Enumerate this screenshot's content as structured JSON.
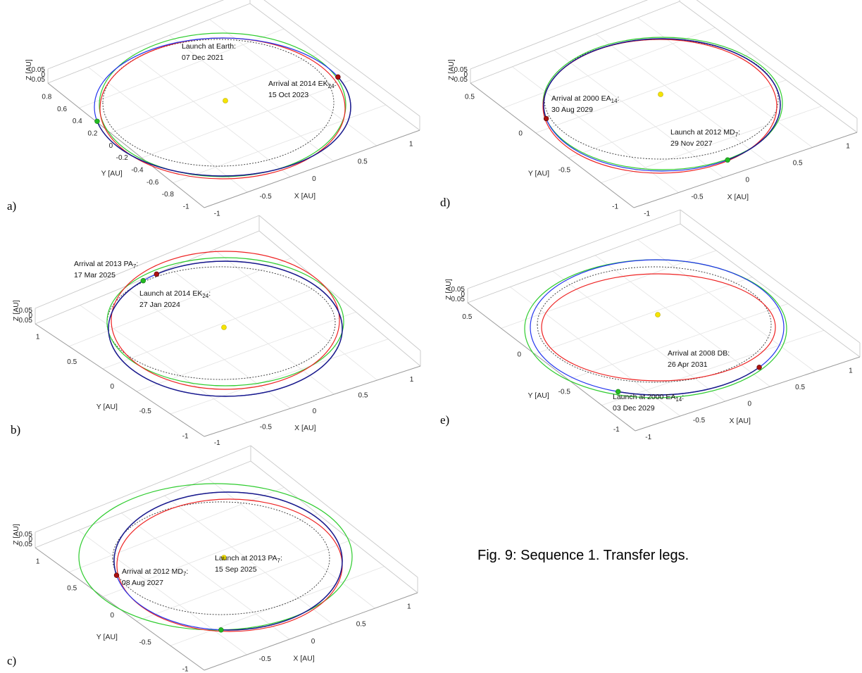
{
  "colors": {
    "axes": "#9a9a9a",
    "grid": "#e3e3e3",
    "dep_orbit": "#2ecc2e",
    "arr_orbit": "#ee2222",
    "transfer": "#2233ee",
    "launch_marker": "#22bb22",
    "arrival_marker": "#aa1111",
    "sun": "#f5e400",
    "ref_orbit": "#333333"
  },
  "caption": "Fig. 9: Sequence 1. Transfer legs.",
  "chart_data": [
    {
      "type": "line",
      "panel": "a)",
      "xlabel": "X  [AU]",
      "ylabel": "Y  [AU]",
      "zlabel": "Z  [AU]",
      "xticks": [
        "-1",
        "-0.5",
        "0",
        "0.5",
        "1"
      ],
      "yticks": [
        "-1",
        "-0.8",
        "-0.6",
        "-0.4",
        "-0.2",
        "0",
        "0.2",
        "0.4",
        "0.6",
        "0.8"
      ],
      "zticks": [
        "-0.05",
        "0",
        "0.05"
      ],
      "launch": {
        "label": "Launch at Earth:",
        "sub": "",
        "date": "07 Dec 2021"
      },
      "arrival": {
        "label": "Arrival at 2014 EK",
        "sub": "24",
        "date": "15 Oct 2023"
      },
      "orbits": {
        "departure": {
          "a": 1.0,
          "e": 0.0167
        },
        "arrival": {
          "a": 1.0,
          "e": 0.07
        }
      }
    },
    {
      "type": "line",
      "panel": "b)",
      "xlabel": "X  [AU]",
      "ylabel": "Y  [AU]",
      "zlabel": "Z  [AU]",
      "xticks": [
        "-1",
        "-0.5",
        "0",
        "0.5",
        "1"
      ],
      "yticks": [
        "-1",
        "-0.5",
        "0",
        "0.5",
        "1"
      ],
      "zticks": [
        "-0.05",
        "0",
        "0.05"
      ],
      "launch": {
        "label": "Launch at 2014 EK",
        "sub": "24",
        "date": "27 Jan 2024"
      },
      "arrival": {
        "label": "Arrival at 2013 PA",
        "sub": "7",
        "date": "17 Mar 2025"
      },
      "orbits": {
        "departure": {
          "a": 1.0,
          "e": 0.07
        },
        "arrival": {
          "a": 1.1,
          "e": 0.12
        }
      }
    },
    {
      "type": "line",
      "panel": "c)",
      "xlabel": "X  [AU]",
      "ylabel": "Y  [AU]",
      "zlabel": "Z  [AU]",
      "xticks": [
        "-1",
        "-0.5",
        "0",
        "0.5",
        "1"
      ],
      "yticks": [
        "-1",
        "-0.5",
        "0",
        "0.5",
        "1"
      ],
      "zticks": [
        "-0.05",
        "0",
        "0.05"
      ],
      "launch": {
        "label": "Launch at 2013 PA",
        "sub": "7",
        "date": "15 Sep 2025"
      },
      "arrival": {
        "label": "Arrival at 2012 MD",
        "sub": "7",
        "date": "08 Aug 2027"
      },
      "orbits": {
        "departure": {
          "a": 1.1,
          "e": 0.12
        },
        "arrival": {
          "a": 0.9,
          "e": 0.1
        }
      }
    },
    {
      "type": "line",
      "panel": "d)",
      "xlabel": "X  [AU]",
      "ylabel": "Y  [AU]",
      "zlabel": "Z  [AU]",
      "xticks": [
        "-1",
        "-0.5",
        "0",
        "0.5",
        "1"
      ],
      "yticks": [
        "-1",
        "-0.5",
        "0",
        "0.5"
      ],
      "zticks": [
        "-0.05",
        "0",
        "0.05"
      ],
      "launch": {
        "label": "Launch at 2012 MD",
        "sub": "7",
        "date": "29 Nov 2027"
      },
      "arrival": {
        "label": "Arrival at 2000 EA",
        "sub": "14",
        "date": "30 Aug 2029"
      },
      "orbits": {
        "departure": {
          "a": 0.9,
          "e": 0.1
        },
        "arrival": {
          "a": 0.95,
          "e": 0.1
        }
      }
    },
    {
      "type": "line",
      "panel": "e)",
      "xlabel": "X  [AU]",
      "ylabel": "Y  [AU]",
      "zlabel": "Z  [AU]",
      "xticks": [
        "-1",
        "-0.5",
        "0",
        "0.5",
        "1"
      ],
      "yticks": [
        "-1",
        "-0.5",
        "0",
        "0.5"
      ],
      "zticks": [
        "-0.05",
        "0",
        "0.05"
      ],
      "launch": {
        "label": "Launch at 2000 EA",
        "sub": "14",
        "date": "03 Dec 2029"
      },
      "arrival": {
        "label": "Arrival at 2008 DB:",
        "sub": "",
        "date": "26 Apr 2031"
      },
      "orbits": {
        "departure": {
          "a": 0.95,
          "e": 0.1
        },
        "arrival": {
          "a": 0.8,
          "e": 0.05
        }
      }
    }
  ]
}
